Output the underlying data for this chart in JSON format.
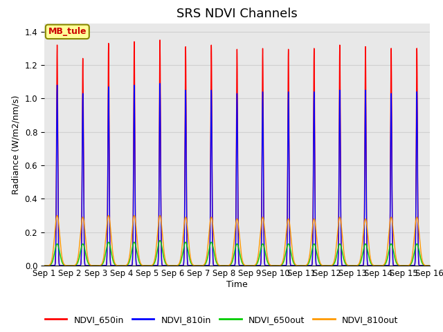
{
  "title": "SRS NDVI Channels",
  "xlabel": "Time",
  "ylabel": "Radiance (W/m2/nm/s)",
  "annotation": "MB_tule",
  "annotation_color": "#cc0000",
  "annotation_bg": "#ffff99",
  "annotation_border": "#888800",
  "ylim": [
    0.0,
    1.45
  ],
  "series": [
    "NDVI_650in",
    "NDVI_810in",
    "NDVI_650out",
    "NDVI_810out"
  ],
  "colors": [
    "#ff0000",
    "#0000ff",
    "#00cc00",
    "#ff9900"
  ],
  "n_cycles": 15,
  "start_day": 1,
  "period_days": 1.0,
  "peaks_650in": [
    1.32,
    1.24,
    1.33,
    1.34,
    1.35,
    1.31,
    1.32,
    1.295,
    1.3,
    1.295,
    1.3,
    1.32,
    1.31,
    1.3,
    1.3
  ],
  "peaks_810in": [
    1.08,
    1.03,
    1.07,
    1.08,
    1.09,
    1.05,
    1.05,
    1.03,
    1.04,
    1.04,
    1.04,
    1.05,
    1.05,
    1.03,
    1.04
  ],
  "peaks_650out": [
    0.13,
    0.13,
    0.14,
    0.14,
    0.15,
    0.14,
    0.14,
    0.13,
    0.13,
    0.13,
    0.13,
    0.13,
    0.13,
    0.13,
    0.13
  ],
  "peaks_810out": [
    0.3,
    0.29,
    0.3,
    0.3,
    0.3,
    0.29,
    0.29,
    0.28,
    0.29,
    0.28,
    0.28,
    0.29,
    0.28,
    0.29,
    0.29
  ],
  "sigma_in": 0.025,
  "sigma_out": 0.1,
  "grid_color": "#d0d0d0",
  "bg_color": "#e8e8e8",
  "tick_label_fontsize": 8.5,
  "title_fontsize": 13,
  "label_fontsize": 9,
  "legend_fontsize": 9
}
